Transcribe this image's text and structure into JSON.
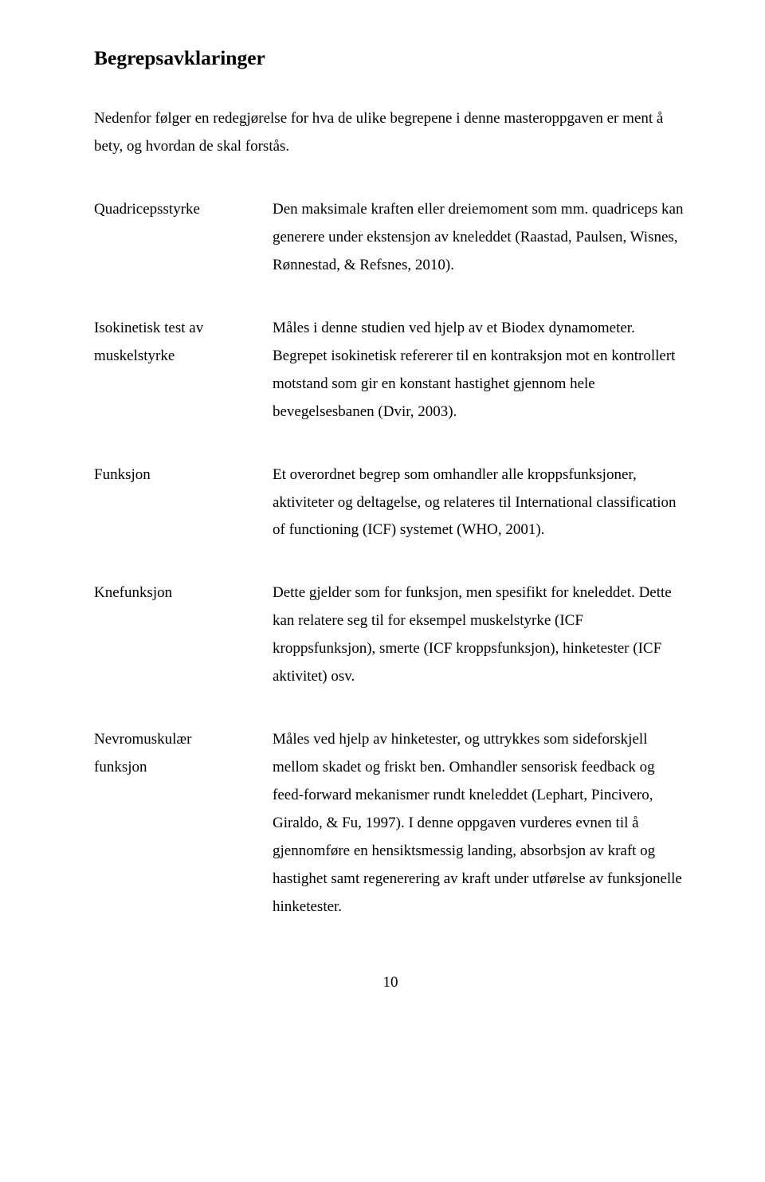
{
  "heading": "Begrepsavklaringer",
  "intro": "Nedenfor følger en redegjørelse for hva de ulike begrepene i denne masteroppgaven er ment å bety, og hvordan de skal forstås.",
  "entries": [
    {
      "term_lines": [
        "Quadricepsstyrke"
      ],
      "definition": "Den maksimale kraften eller dreiemoment som mm. quadriceps kan generere under ekstensjon av kneleddet (Raastad, Paulsen, Wisnes, Rønnestad, & Refsnes, 2010)."
    },
    {
      "term_lines": [
        "Isokinetisk test av",
        "muskelstyrke"
      ],
      "definition": "Måles i denne studien ved hjelp av et Biodex dynamometer. Begrepet isokinetisk refererer til en kontraksjon mot en kontrollert motstand som gir en konstant hastighet gjennom hele bevegelsesbanen (Dvir, 2003)."
    },
    {
      "term_lines": [
        "Funksjon"
      ],
      "definition": "Et overordnet begrep som omhandler alle kroppsfunksjoner, aktiviteter og deltagelse, og relateres til International classification of functioning (ICF) systemet (WHO, 2001)."
    },
    {
      "term_lines": [
        "Knefunksjon"
      ],
      "definition": "Dette gjelder som for funksjon, men spesifikt for kneleddet. Dette kan relatere seg til for eksempel muskelstyrke (ICF kroppsfunksjon), smerte (ICF kroppsfunksjon), hinketester (ICF aktivitet) osv."
    },
    {
      "term_lines": [
        "Nevromuskulær",
        "funksjon"
      ],
      "definition": "Måles ved hjelp av hinketester, og uttrykkes som sideforskjell mellom skadet og friskt ben. Omhandler sensorisk feedback og feed-forward mekanismer rundt kneleddet (Lephart, Pincivero, Giraldo, & Fu, 1997). I denne oppgaven vurderes evnen til å gjennomføre en hensiktsmessig landing, absorbsjon av kraft og hastighet samt regenerering av kraft under utførelse av funksjonelle hinketester."
    }
  ],
  "page_number": "10"
}
